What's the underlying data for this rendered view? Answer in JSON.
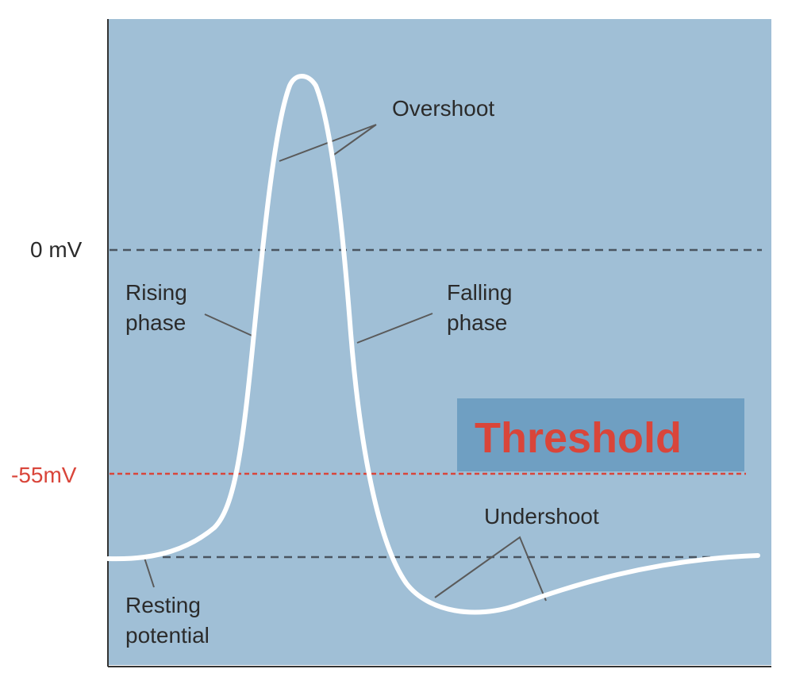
{
  "colors": {
    "plot_bg": "#a0bfd6",
    "trace": "#ffffff",
    "dashed_gray": "#4a5560",
    "threshold_red": "#d9453a",
    "threshold_box": "#6f9fc2",
    "pointer_line": "#5a5a5a",
    "axis": "#333333"
  },
  "axis_labels": {
    "zero": "0 mV",
    "threshold": "-55mV"
  },
  "threshold_box": {
    "text": "Threshold"
  },
  "annotations": {
    "overshoot": "Overshoot",
    "rising_1": "Rising",
    "rising_2": "phase",
    "falling_1": "Falling",
    "falling_2": "phase",
    "undershoot": "Undershoot",
    "resting_1": "Resting",
    "resting_2": "potential"
  }
}
